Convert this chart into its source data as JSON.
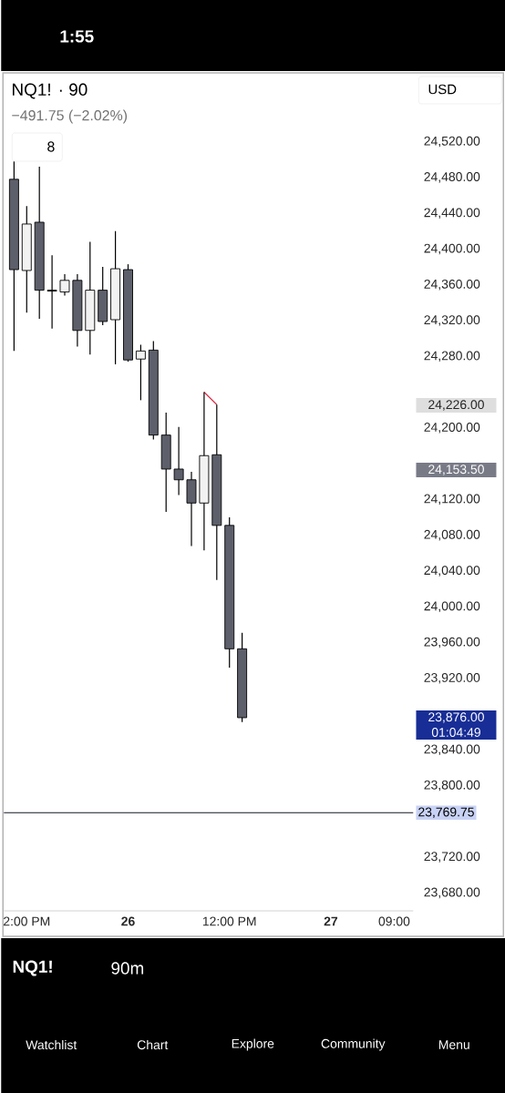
{
  "chart_data": {
    "type": "candlestick",
    "title": "NQ1! · 90",
    "subtitle": "−491.75 (−2.02%)",
    "categories": [
      null,
      "2:00 PM",
      null,
      null,
      null,
      null,
      null,
      null,
      null,
      "**26**",
      null,
      null,
      null,
      null,
      null,
      null,
      null,
      "12:00 PM",
      null,
      null,
      null,
      null,
      null,
      null,
      null,
      "**27**",
      null,
      null,
      null,
      null,
      "09:00"
    ],
    "ohlc": [
      [
        24478,
        24498,
        24286,
        24377
      ],
      [
        24376,
        24448,
        24329,
        24428
      ],
      [
        24430,
        24492,
        24322,
        24354
      ],
      [
        24354,
        24393,
        24311,
        24353
      ],
      [
        24352,
        24372,
        24348,
        24365
      ],
      [
        24365,
        24372,
        24291,
        24309
      ],
      [
        24309,
        24408,
        24282,
        24354
      ],
      [
        24354,
        24380,
        24315,
        24319
      ],
      [
        24321,
        24420,
        24271,
        24378
      ],
      [
        24377,
        24383,
        24274,
        24276
      ],
      [
        24277,
        24293,
        24231,
        24286
      ],
      [
        24287,
        24297,
        24187,
        24192
      ],
      [
        24192,
        24217,
        24106,
        24154
      ],
      [
        24154,
        24201,
        24125,
        24142
      ],
      [
        24142,
        24151,
        24068,
        24116
      ],
      [
        24116,
        24240,
        24063,
        24169
      ],
      [
        24170,
        24226,
        24030,
        24091
      ],
      [
        24091,
        24100,
        23932,
        23953
      ],
      [
        23953,
        23971,
        23871,
        23876
      ],
      null,
      null,
      null,
      null,
      null,
      null,
      null,
      null,
      null,
      null,
      null,
      null
    ],
    "colors": [
      "#5d606b",
      "#f2f2f2",
      "#5d606b",
      "#5d606b",
      "#f2f2f2",
      "#5d606b",
      "#f2f2f2",
      "#5d606b",
      "#f2f2f2",
      "#5d606b",
      "#f2f2f2",
      "#5d606b",
      "#5d606b",
      "#5d606b",
      "#5d606b",
      "#f2f2f2",
      "#5d606b",
      "#5d606b",
      "#5d606b",
      null,
      null,
      null,
      null,
      null,
      null,
      null,
      null,
      null,
      null,
      null,
      null
    ],
    "series": [
      {
        "type": "line",
        "color": "#d8314a",
        "values": [
          null,
          null,
          null,
          null,
          null,
          null,
          null,
          null,
          null,
          null,
          null,
          null,
          null,
          null,
          null,
          24240,
          24226,
          null,
          null,
          null,
          null,
          null,
          null,
          null,
          null,
          null,
          null,
          null,
          null,
          null,
          null
        ]
      }
    ],
    "ylim": [
      23660,
      24597
    ],
    "yticks": [
      {
        "value": 23680,
        "label": "23,680.00"
      },
      {
        "value": 23720,
        "label": "23,720.00"
      },
      {
        "value": 23800,
        "label": "23,800.00"
      },
      {
        "value": 23840,
        "label": "23,840.00"
      },
      {
        "value": 23920,
        "label": "23,920.00"
      },
      {
        "value": 23960,
        "label": "23,960.00"
      },
      {
        "value": 24000,
        "label": "24,000.00"
      },
      {
        "value": 24040,
        "label": "24,040.00"
      },
      {
        "value": 24080,
        "label": "24,080.00"
      },
      {
        "value": 24120,
        "label": "24,120.00"
      },
      {
        "value": 24200,
        "label": "24,200.00"
      },
      {
        "value": 24280,
        "label": "24,280.00"
      },
      {
        "value": 24320,
        "label": "24,320.00"
      },
      {
        "value": 24360,
        "label": "24,360.00"
      },
      {
        "value": 24400,
        "label": "24,400.00"
      },
      {
        "value": 24440,
        "label": "24,440.00"
      },
      {
        "value": 24480,
        "label": "24,480.00"
      },
      {
        "value": 24520,
        "label": "24,520.00"
      }
    ],
    "ref_lines": [
      {
        "axis": "y",
        "value": 23769.75,
        "label": "23,769.75",
        "color": "#131722"
      }
    ],
    "annotations": [
      "24,226.00",
      "24,153.50",
      "23,876.00",
      "01:04:49",
      "1:55",
      "USD",
      "8",
      "NQ1!",
      "90m",
      "Watchlist",
      "Chart",
      "Explore",
      "Community",
      "Menu"
    ],
    "grid": false
  }
}
